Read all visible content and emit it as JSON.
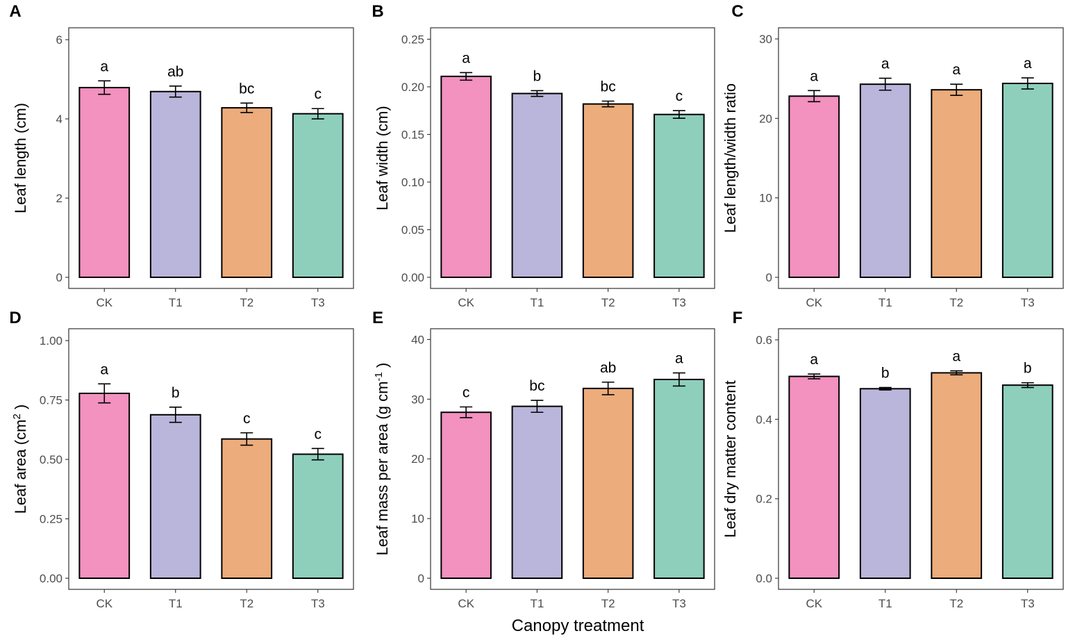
{
  "figure": {
    "xlabel": "Canopy treatment",
    "bar_colors": [
      "#f391bf",
      "#bab5da",
      "#ecac7b",
      "#8ecfbc"
    ],
    "axis_color": "#333333",
    "tick_text_color": "#4d4d4d"
  },
  "chart_data": [
    {
      "panel": "A",
      "type": "bar",
      "categories": [
        "CK",
        "T1",
        "T2",
        "T3"
      ],
      "values": [
        4.79,
        4.69,
        4.28,
        4.13
      ],
      "errors": [
        0.17,
        0.14,
        0.12,
        0.13
      ],
      "sig_labels": [
        "a",
        "ab",
        "bc",
        "c"
      ],
      "ylabel": "Leaf length (cm)",
      "ylabel_sup": "",
      "ylabel_tail": "",
      "ylim": [
        0,
        6.3
      ],
      "yticks": [
        0,
        2,
        4,
        6
      ],
      "ytick_labels": [
        "0",
        "2",
        "4",
        "6"
      ]
    },
    {
      "panel": "B",
      "type": "bar",
      "categories": [
        "CK",
        "T1",
        "T2",
        "T3"
      ],
      "values": [
        0.211,
        0.193,
        0.182,
        0.171
      ],
      "errors": [
        0.004,
        0.003,
        0.003,
        0.004
      ],
      "sig_labels": [
        "a",
        "b",
        "bc",
        "c"
      ],
      "ylabel": "Leaf width (cm)",
      "ylabel_sup": "",
      "ylabel_tail": "",
      "ylim": [
        0,
        0.262
      ],
      "yticks": [
        0,
        0.05,
        0.1,
        0.15,
        0.2,
        0.25
      ],
      "ytick_labels": [
        "0.00",
        "0.05",
        "0.10",
        "0.15",
        "0.20",
        "0.25"
      ]
    },
    {
      "panel": "C",
      "type": "bar",
      "categories": [
        "CK",
        "T1",
        "T2",
        "T3"
      ],
      "values": [
        22.8,
        24.3,
        23.6,
        24.4
      ],
      "errors": [
        0.7,
        0.75,
        0.7,
        0.7
      ],
      "sig_labels": [
        "a",
        "a",
        "a",
        "a"
      ],
      "ylabel": "Leaf length/width ratio",
      "ylabel_sup": "",
      "ylabel_tail": "",
      "ylim": [
        0,
        31.4
      ],
      "yticks": [
        0,
        10,
        20,
        30
      ],
      "ytick_labels": [
        "0",
        "10",
        "20",
        "30"
      ]
    },
    {
      "panel": "D",
      "type": "bar",
      "categories": [
        "CK",
        "T1",
        "T2",
        "T3"
      ],
      "values": [
        0.778,
        0.688,
        0.586,
        0.522
      ],
      "errors": [
        0.04,
        0.032,
        0.026,
        0.024
      ],
      "sig_labels": [
        "a",
        "b",
        "c",
        "c"
      ],
      "ylabel": "Leaf area (cm",
      "ylabel_sup": "2",
      "ylabel_tail": ")",
      "ylim": [
        0,
        1.05
      ],
      "yticks": [
        0,
        0.25,
        0.5,
        0.75,
        1.0
      ],
      "ytick_labels": [
        "0.00",
        "0.25",
        "0.50",
        "0.75",
        "1.00"
      ]
    },
    {
      "panel": "E",
      "type": "bar",
      "categories": [
        "CK",
        "T1",
        "T2",
        "T3"
      ],
      "values": [
        27.8,
        28.8,
        31.8,
        33.3
      ],
      "errors": [
        0.9,
        1.0,
        1.05,
        1.1
      ],
      "sig_labels": [
        "c",
        "bc",
        "ab",
        "a"
      ],
      "ylabel": "Leaf mass per area (g cm",
      "ylabel_sup": "-1",
      "ylabel_tail": ")",
      "ylim": [
        0,
        41.8
      ],
      "yticks": [
        0,
        10,
        20,
        30,
        40
      ],
      "ytick_labels": [
        "0",
        "10",
        "20",
        "30",
        "40"
      ]
    },
    {
      "panel": "F",
      "type": "bar",
      "categories": [
        "CK",
        "T1",
        "T2",
        "T3"
      ],
      "values": [
        0.508,
        0.477,
        0.517,
        0.486
      ],
      "errors": [
        0.006,
        0.003,
        0.005,
        0.006
      ],
      "sig_labels": [
        "a",
        "b",
        "a",
        "b"
      ],
      "ylabel": "Leaf dry matter content",
      "ylabel_sup": "",
      "ylabel_tail": "",
      "ylim": [
        0,
        0.628
      ],
      "yticks": [
        0,
        0.2,
        0.4,
        0.6
      ],
      "ytick_labels": [
        "0.0",
        "0.2",
        "0.4",
        "0.6"
      ]
    }
  ]
}
